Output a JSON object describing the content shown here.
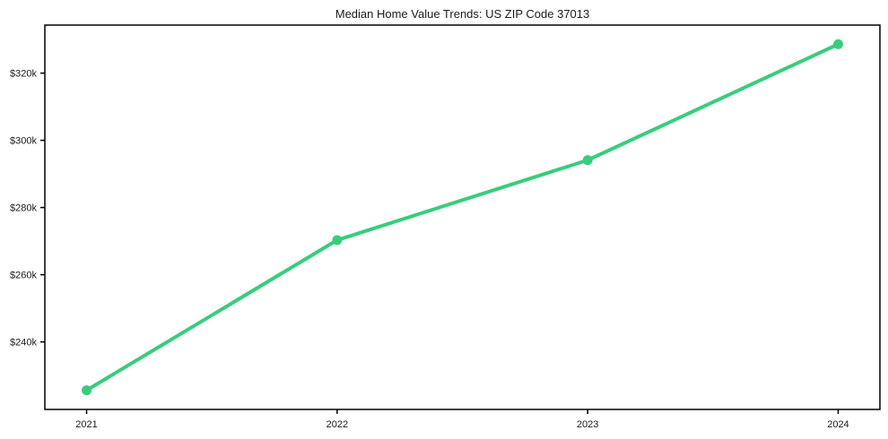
{
  "chart_data": {
    "type": "line",
    "title": "Median Home Value Trends: US ZIP Code 37013",
    "categories": [
      "2021",
      "2022",
      "2023",
      "2024"
    ],
    "series": [
      {
        "name": "Median Home Value",
        "values": [
          225600,
          270300,
          294100,
          328600
        ]
      }
    ],
    "xlabel": "",
    "ylabel": "",
    "yticks": [
      {
        "value": 240000,
        "label": "$240k"
      },
      {
        "value": 260000,
        "label": "$260k"
      },
      {
        "value": 280000,
        "label": "$280k"
      },
      {
        "value": 300000,
        "label": "$300k"
      },
      {
        "value": 320000,
        "label": "$320k"
      }
    ],
    "ylim": [
      219900,
      334300
    ],
    "grid": false,
    "legend_position": "none",
    "marker": "circle"
  },
  "style": {
    "line_color": "#38cd7c",
    "marker_color": "#38cd7c",
    "axis_color": "#000000",
    "text_color": "#1a1a1a",
    "background_color": "#ffffff"
  }
}
